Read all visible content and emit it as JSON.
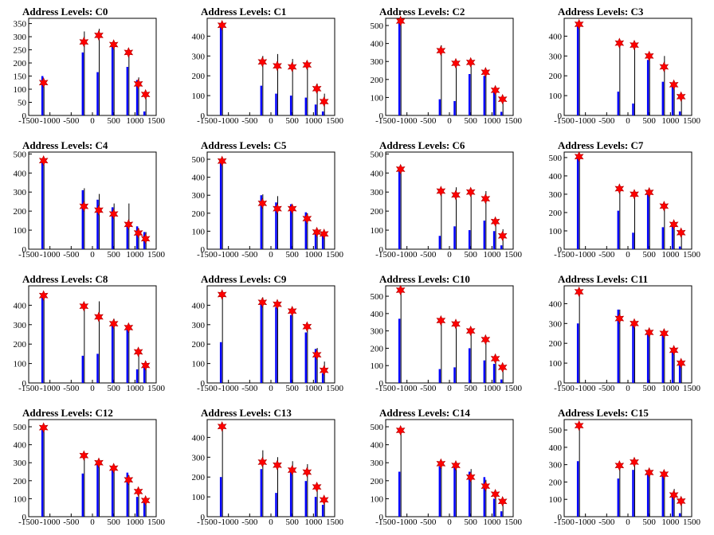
{
  "figure": {
    "background": "#ffffff"
  },
  "style": {
    "blue_color": "#0000ff",
    "black_color": "#000000",
    "marker_color": "#ff0000"
  },
  "chart_data": [
    {
      "type": "bar",
      "title": "Address Levels: C0",
      "xlim": [
        -1500,
        1500
      ],
      "ylim": [
        0,
        370
      ],
      "y_ticks": [
        0,
        50,
        100,
        150,
        200,
        250,
        300,
        350
      ],
      "x_ticks": [
        -1500,
        -1000,
        -500,
        0,
        500,
        1000,
        1500
      ],
      "x_tick_labels": [
        "-1500",
        "-1000",
        "-500",
        "0",
        "500",
        "1000",
        "1500"
      ],
      "peaks_x": [
        -1150,
        -200,
        150,
        500,
        850,
        1080,
        1250
      ],
      "blue_heights": [
        150,
        240,
        165,
        265,
        185,
        135,
        15
      ],
      "black_heights": [
        125,
        320,
        330,
        280,
        245,
        145,
        90
      ],
      "markers": [
        125,
        280,
        305,
        270,
        240,
        120,
        80
      ]
    },
    {
      "type": "bar",
      "title": "Address Levels: C1",
      "xlim": [
        -1500,
        1500
      ],
      "ylim": [
        0,
        490
      ],
      "y_ticks": [
        0,
        100,
        200,
        300,
        400
      ],
      "x_ticks": [
        -1500,
        -1000,
        -500,
        0,
        500,
        1000,
        1500
      ],
      "x_tick_labels": [
        "-1500",
        "-1000",
        "-500",
        "0",
        "500",
        "1000",
        "1500"
      ],
      "peaks_x": [
        -1150,
        -200,
        150,
        500,
        850,
        1080,
        1250
      ],
      "blue_heights": [
        450,
        150,
        110,
        100,
        90,
        55,
        20
      ],
      "black_heights": [
        460,
        300,
        310,
        285,
        260,
        160,
        110
      ],
      "markers": [
        455,
        270,
        250,
        245,
        255,
        135,
        70
      ]
    },
    {
      "type": "bar",
      "title": "Address Levels: C2",
      "xlim": [
        -1500,
        1500
      ],
      "ylim": [
        0,
        540
      ],
      "y_ticks": [
        0,
        100,
        200,
        300,
        400,
        500
      ],
      "x_ticks": [
        -1500,
        -1000,
        -500,
        0,
        500,
        1000,
        1500
      ],
      "x_tick_labels": [
        "-1500",
        "-1000",
        "-500",
        "0",
        "500",
        "1000",
        "1500"
      ],
      "peaks_x": [
        -1150,
        -200,
        150,
        500,
        850,
        1080,
        1250
      ],
      "blue_heights": [
        520,
        90,
        80,
        230,
        220,
        130,
        20
      ],
      "black_heights": [
        530,
        390,
        310,
        305,
        250,
        145,
        100
      ],
      "markers": [
        525,
        360,
        290,
        295,
        240,
        140,
        90
      ]
    },
    {
      "type": "bar",
      "title": "Address Levels: C3",
      "xlim": [
        -1500,
        1500
      ],
      "ylim": [
        0,
        490
      ],
      "y_ticks": [
        0,
        100,
        200,
        300,
        400
      ],
      "x_ticks": [
        -1500,
        -1000,
        -500,
        0,
        500,
        1000,
        1500
      ],
      "x_tick_labels": [
        "-1500",
        "-1000",
        "-500",
        "0",
        "500",
        "1000",
        "1500"
      ],
      "peaks_x": [
        -1150,
        -200,
        150,
        500,
        850,
        1080,
        1250
      ],
      "blue_heights": [
        460,
        120,
        60,
        280,
        170,
        150,
        20
      ],
      "black_heights": [
        470,
        380,
        350,
        305,
        300,
        165,
        105
      ],
      "markers": [
        460,
        365,
        355,
        300,
        245,
        155,
        95
      ]
    },
    {
      "type": "bar",
      "title": "Address Levels: C4",
      "xlim": [
        -1500,
        1500
      ],
      "ylim": [
        0,
        510
      ],
      "y_ticks": [
        0,
        100,
        200,
        300,
        400,
        500
      ],
      "x_ticks": [
        -1500,
        -1000,
        -500,
        0,
        500,
        1000,
        1500
      ],
      "x_tick_labels": [
        "-1500",
        "-1000",
        "-500",
        "0",
        "500",
        "1000",
        "1500"
      ],
      "peaks_x": [
        -1150,
        -200,
        150,
        500,
        850,
        1080,
        1250
      ],
      "blue_heights": [
        460,
        310,
        260,
        220,
        140,
        120,
        90
      ],
      "black_heights": [
        470,
        320,
        290,
        240,
        240,
        110,
        90
      ],
      "markers": [
        465,
        225,
        205,
        185,
        130,
        85,
        55
      ]
    },
    {
      "type": "bar",
      "title": "Address Levels: C5",
      "xlim": [
        -1500,
        1500
      ],
      "ylim": [
        0,
        540
      ],
      "y_ticks": [
        0,
        100,
        200,
        300,
        400,
        500
      ],
      "x_ticks": [
        -1500,
        -1000,
        -500,
        0,
        500,
        1000,
        1500
      ],
      "x_tick_labels": [
        "-1500",
        "-1000",
        "-500",
        "0",
        "500",
        "1000",
        "1500"
      ],
      "peaks_x": [
        -1150,
        -200,
        150,
        500,
        850,
        1080,
        1250
      ],
      "blue_heights": [
        490,
        300,
        260,
        250,
        205,
        100,
        80
      ],
      "black_heights": [
        480,
        305,
        295,
        245,
        200,
        110,
        90
      ],
      "markers": [
        490,
        255,
        225,
        225,
        170,
        95,
        85
      ]
    },
    {
      "type": "bar",
      "title": "Address Levels: C6",
      "xlim": [
        -1500,
        1500
      ],
      "ylim": [
        0,
        510
      ],
      "y_ticks": [
        0,
        100,
        200,
        300,
        400,
        500
      ],
      "x_ticks": [
        -1500,
        -1000,
        -500,
        0,
        500,
        1000,
        1500
      ],
      "x_tick_labels": [
        "-1500",
        "-1000",
        "-500",
        "0",
        "500",
        "1000",
        "1500"
      ],
      "peaks_x": [
        -1150,
        -200,
        150,
        500,
        850,
        1080,
        1250
      ],
      "blue_heights": [
        420,
        70,
        120,
        100,
        150,
        95,
        20
      ],
      "black_heights": [
        430,
        310,
        325,
        315,
        305,
        160,
        105
      ],
      "markers": [
        420,
        305,
        285,
        300,
        265,
        145,
        70
      ]
    },
    {
      "type": "bar",
      "title": "Address Levels: C7",
      "xlim": [
        -1500,
        1500
      ],
      "ylim": [
        0,
        530
      ],
      "y_ticks": [
        0,
        100,
        200,
        300,
        400,
        500
      ],
      "x_ticks": [
        -1500,
        -1000,
        -500,
        0,
        500,
        1000,
        1500
      ],
      "x_tick_labels": [
        "-1500",
        "-1000",
        "-500",
        "0",
        "500",
        "1000",
        "1500"
      ],
      "peaks_x": [
        -1150,
        -200,
        150,
        500,
        850,
        1080,
        1250
      ],
      "blue_heights": [
        500,
        210,
        90,
        300,
        120,
        125,
        15
      ],
      "black_heights": [
        510,
        330,
        320,
        320,
        250,
        145,
        100
      ],
      "markers": [
        505,
        330,
        300,
        310,
        235,
        135,
        90
      ]
    },
    {
      "type": "bar",
      "title": "Address Levels: C8",
      "xlim": [
        -1500,
        1500
      ],
      "ylim": [
        0,
        500
      ],
      "y_ticks": [
        0,
        100,
        200,
        300,
        400
      ],
      "x_ticks": [
        -1500,
        -1000,
        -500,
        0,
        500,
        1000,
        1500
      ],
      "x_tick_labels": [
        "-1500",
        "-1000",
        "-500",
        "0",
        "500",
        "1000",
        "1500"
      ],
      "peaks_x": [
        -1150,
        -200,
        150,
        500,
        850,
        1080,
        1250
      ],
      "blue_heights": [
        440,
        140,
        150,
        300,
        290,
        70,
        100
      ],
      "black_heights": [
        460,
        400,
        420,
        330,
        300,
        170,
        110
      ],
      "markers": [
        450,
        395,
        340,
        305,
        285,
        160,
        90
      ]
    },
    {
      "type": "bar",
      "title": "Address Levels: C9",
      "xlim": [
        -1500,
        1500
      ],
      "ylim": [
        0,
        500
      ],
      "y_ticks": [
        0,
        100,
        200,
        300,
        400
      ],
      "x_ticks": [
        -1500,
        -1000,
        -500,
        0,
        500,
        1000,
        1500
      ],
      "x_tick_labels": [
        "-1500",
        "-1000",
        "-500",
        "0",
        "500",
        "1000",
        "1500"
      ],
      "peaks_x": [
        -1150,
        -200,
        150,
        500,
        850,
        1080,
        1250
      ],
      "blue_heights": [
        210,
        420,
        390,
        350,
        260,
        175,
        50
      ],
      "black_heights": [
        460,
        440,
        400,
        350,
        300,
        180,
        110
      ],
      "markers": [
        455,
        415,
        405,
        370,
        290,
        145,
        65
      ]
    },
    {
      "type": "bar",
      "title": "Address Levels: C10",
      "xlim": [
        -1500,
        1500
      ],
      "ylim": [
        0,
        560
      ],
      "y_ticks": [
        0,
        100,
        200,
        300,
        400,
        500
      ],
      "x_ticks": [
        -1500,
        -1000,
        -500,
        0,
        500,
        1000,
        1500
      ],
      "x_tick_labels": [
        "-1500",
        "-1000",
        "-500",
        "0",
        "500",
        "1000",
        "1500"
      ],
      "peaks_x": [
        -1150,
        -200,
        150,
        500,
        850,
        1080,
        1250
      ],
      "blue_heights": [
        370,
        80,
        90,
        200,
        130,
        110,
        20
      ],
      "black_heights": [
        545,
        370,
        350,
        310,
        255,
        145,
        100
      ],
      "markers": [
        535,
        360,
        340,
        300,
        250,
        140,
        90
      ]
    },
    {
      "type": "bar",
      "title": "Address Levels: C11",
      "xlim": [
        -1500,
        1500
      ],
      "ylim": [
        0,
        490
      ],
      "y_ticks": [
        0,
        100,
        200,
        300,
        400
      ],
      "x_ticks": [
        -1500,
        -1000,
        -500,
        0,
        500,
        1000,
        1500
      ],
      "x_tick_labels": [
        "-1500",
        "-1000",
        "-500",
        "0",
        "500",
        "1000",
        "1500"
      ],
      "peaks_x": [
        -1150,
        -200,
        150,
        500,
        850,
        1080,
        1250
      ],
      "blue_heights": [
        300,
        370,
        300,
        260,
        260,
        160,
        90
      ],
      "black_heights": [
        460,
        370,
        310,
        270,
        270,
        175,
        100
      ],
      "markers": [
        460,
        325,
        300,
        255,
        250,
        165,
        100
      ]
    },
    {
      "type": "bar",
      "title": "Address Levels: C12",
      "xlim": [
        -1500,
        1500
      ],
      "ylim": [
        0,
        540
      ],
      "y_ticks": [
        0,
        100,
        200,
        300,
        400,
        500
      ],
      "x_ticks": [
        -1500,
        -1000,
        -500,
        0,
        500,
        1000,
        1500
      ],
      "x_tick_labels": [
        "-1500",
        "-1000",
        "-500",
        "0",
        "500",
        "1000",
        "1500"
      ],
      "peaks_x": [
        -1150,
        -200,
        150,
        500,
        850,
        1080,
        1250
      ],
      "blue_heights": [
        495,
        240,
        310,
        270,
        245,
        110,
        90
      ],
      "black_heights": [
        500,
        350,
        320,
        285,
        230,
        150,
        100
      ],
      "markers": [
        495,
        340,
        300,
        270,
        205,
        140,
        90
      ]
    },
    {
      "type": "bar",
      "title": "Address Levels: C13",
      "xlim": [
        -1500,
        1500
      ],
      "ylim": [
        0,
        490
      ],
      "y_ticks": [
        0,
        100,
        200,
        300,
        400
      ],
      "x_ticks": [
        -1500,
        -1000,
        -500,
        0,
        500,
        1000,
        1500
      ],
      "x_tick_labels": [
        "-1500",
        "-1000",
        "-500",
        "0",
        "500",
        "1000",
        "1500"
      ],
      "peaks_x": [
        -1150,
        -200,
        150,
        500,
        850,
        1080,
        1250
      ],
      "blue_heights": [
        200,
        240,
        120,
        240,
        180,
        100,
        60
      ],
      "black_heights": [
        460,
        335,
        300,
        280,
        265,
        165,
        100
      ],
      "markers": [
        455,
        275,
        260,
        235,
        225,
        150,
        85
      ]
    },
    {
      "type": "bar",
      "title": "Address Levels: C14",
      "xlim": [
        -1500,
        1500
      ],
      "ylim": [
        0,
        540
      ],
      "y_ticks": [
        0,
        100,
        200,
        300,
        400,
        500
      ],
      "x_ticks": [
        -1500,
        -1000,
        -500,
        0,
        500,
        1000,
        1500
      ],
      "x_tick_labels": [
        "-1500",
        "-1000",
        "-500",
        "0",
        "500",
        "1000",
        "1500"
      ],
      "peaks_x": [
        -1150,
        -200,
        150,
        500,
        850,
        1080,
        1250
      ],
      "blue_heights": [
        250,
        280,
        280,
        250,
        220,
        100,
        30
      ],
      "black_heights": [
        480,
        300,
        305,
        265,
        205,
        125,
        95
      ],
      "markers": [
        480,
        295,
        285,
        220,
        170,
        125,
        85
      ]
    },
    {
      "type": "bar",
      "title": "Address Levels: C15",
      "xlim": [
        -1500,
        1500
      ],
      "ylim": [
        0,
        560
      ],
      "y_ticks": [
        0,
        100,
        200,
        300,
        400,
        500
      ],
      "x_ticks": [
        -1500,
        -1000,
        -500,
        0,
        500,
        1000,
        1500
      ],
      "x_tick_labels": [
        "-1500",
        "-1000",
        "-500",
        "0",
        "500",
        "1000",
        "1500"
      ],
      "peaks_x": [
        -1150,
        -200,
        150,
        500,
        850,
        1080,
        1250
      ],
      "blue_heights": [
        320,
        220,
        270,
        260,
        250,
        130,
        20
      ],
      "black_heights": [
        530,
        310,
        320,
        270,
        260,
        160,
        110
      ],
      "markers": [
        525,
        295,
        315,
        255,
        245,
        125,
        90
      ]
    }
  ]
}
